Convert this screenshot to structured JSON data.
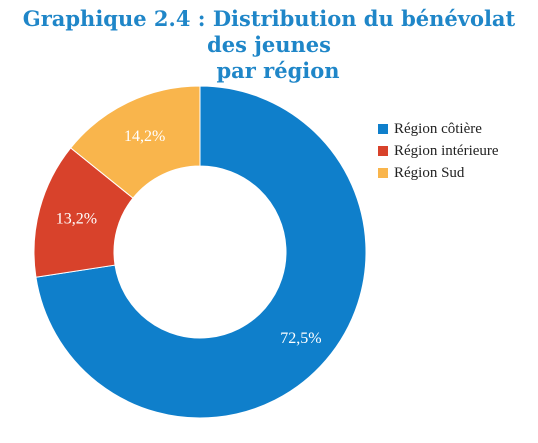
{
  "title": {
    "line1": "Graphique 2.4 : Distribution du bénévolat des jeunes",
    "line2": "par région"
  },
  "chart_data": {
    "type": "pie",
    "donut": true,
    "categories": [
      "Région côtière",
      "Région intérieure",
      "Région Sud"
    ],
    "values": [
      72.5,
      13.2,
      14.2
    ],
    "labels": [
      "72,5%",
      "13,2%",
      "14,2%"
    ],
    "colors": [
      "#0f7fcb",
      "#d8422b",
      "#f9b54c"
    ],
    "legend_position": "right"
  }
}
